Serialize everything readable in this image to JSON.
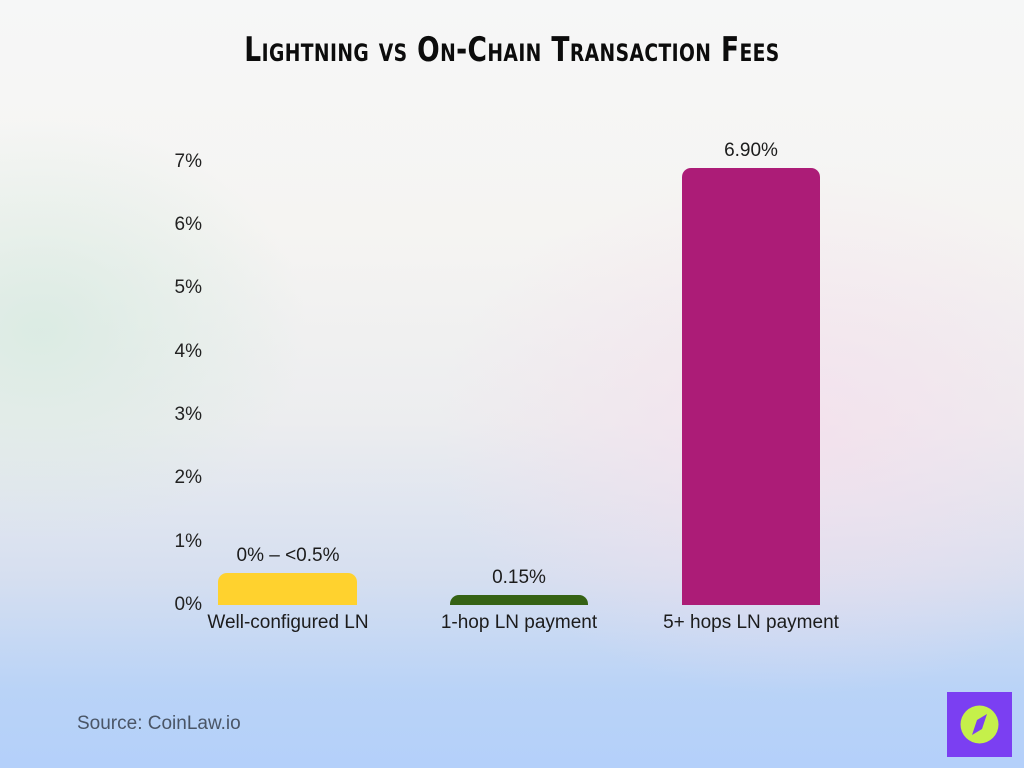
{
  "title": "Lightning vs On-Chain Transaction Fees",
  "source": "Source: CoinLaw.io",
  "logo": {
    "icon": "compass-icon",
    "bg_color": "#7b3ff2",
    "fg_color": "#c5f04a"
  },
  "yaxis": {
    "ticks": [
      "0%",
      "1%",
      "2%",
      "3%",
      "4%",
      "5%",
      "6%",
      "7%"
    ]
  },
  "bars": [
    {
      "label": "Well-configured LN",
      "value_label": "0% – <0.5%",
      "value": 0.5,
      "color": "#ffd22e"
    },
    {
      "label": "1-hop LN payment",
      "value_label": "0.15%",
      "value": 0.15,
      "color": "#356214"
    },
    {
      "label": "5+ hops LN payment",
      "value_label": "6.90%",
      "value": 6.9,
      "color": "#ac1c77"
    }
  ],
  "chart_data": {
    "type": "bar",
    "title": "Lightning vs On-Chain Transaction Fees",
    "categories": [
      "Well-configured LN",
      "1-hop LN payment",
      "5+ hops LN payment"
    ],
    "values": [
      0.5,
      0.15,
      6.9
    ],
    "data_labels": [
      "0% – <0.5%",
      "0.15%",
      "6.90%"
    ],
    "xlabel": "",
    "ylabel": "",
    "ylim": [
      0,
      7
    ],
    "yticks": [
      "0%",
      "1%",
      "2%",
      "3%",
      "4%",
      "5%",
      "6%",
      "7%"
    ],
    "grid": false,
    "legend": null,
    "colors": [
      "#ffd22e",
      "#356214",
      "#ac1c77"
    ],
    "source": "Source: CoinLaw.io"
  }
}
